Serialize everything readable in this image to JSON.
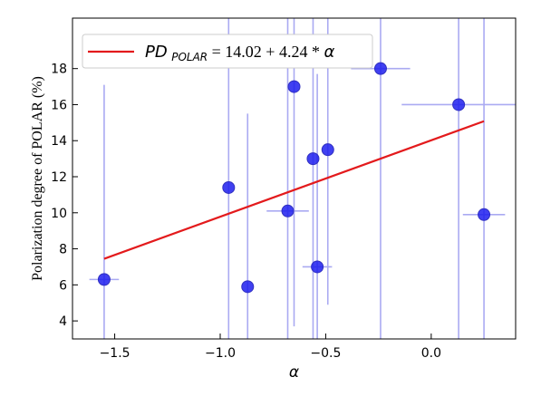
{
  "chart_data": {
    "type": "scatter",
    "xlabel": "α",
    "ylabel": "Polarization degree of POLAR (%)",
    "xlim": [
      -1.7,
      0.4
    ],
    "ylim": [
      3.0,
      20.8
    ],
    "x_ticks": [
      -1.5,
      -1.0,
      -0.5,
      0.0
    ],
    "x_tick_labels": [
      "−1.5",
      "−1.0",
      "−0.5",
      "0.0"
    ],
    "y_ticks": [
      4,
      6,
      8,
      10,
      12,
      14,
      16,
      18
    ],
    "y_tick_labels": [
      "4",
      "6",
      "8",
      "10",
      "12",
      "14",
      "16",
      "18"
    ],
    "points": [
      {
        "x": -1.55,
        "y": 6.3,
        "x_err": 0.07,
        "y_low": 3.0,
        "y_high": 17.1
      },
      {
        "x": -0.96,
        "y": 11.4,
        "x_err": 0.0,
        "y_low": 3.0,
        "y_high": 20.8
      },
      {
        "x": -0.87,
        "y": 5.9,
        "x_err": 0.0,
        "y_low": 3.0,
        "y_high": 15.5
      },
      {
        "x": -0.68,
        "y": 10.1,
        "x_err": 0.1,
        "y_low": 3.0,
        "y_high": 20.8
      },
      {
        "x": -0.65,
        "y": 17.0,
        "x_err": 0.0,
        "y_low": 3.7,
        "y_high": 20.8
      },
      {
        "x": -0.56,
        "y": 13.0,
        "x_err": 0.0,
        "y_low": 3.0,
        "y_high": 20.8
      },
      {
        "x": -0.54,
        "y": 7.0,
        "x_err": 0.07,
        "y_low": 3.0,
        "y_high": 17.7
      },
      {
        "x": -0.49,
        "y": 13.5,
        "x_err": 0.0,
        "y_low": 4.9,
        "y_high": 20.8
      },
      {
        "x": -0.24,
        "y": 18.0,
        "x_err": 0.14,
        "y_low": 3.0,
        "y_high": 20.8
      },
      {
        "x": 0.13,
        "y": 16.0,
        "x_err": 0.27,
        "y_low": 3.0,
        "y_high": 20.8
      },
      {
        "x": 0.25,
        "y": 9.9,
        "x_err": 0.1,
        "y_low": 3.0,
        "y_high": 20.8
      }
    ],
    "fit": {
      "intercept": 14.02,
      "slope": 4.24,
      "x_range": [
        -1.55,
        0.25
      ]
    },
    "legend": {
      "position": "top-left",
      "symbol_main": "PD",
      "symbol_sub": "POLAR",
      "equation": "= 14.02 + 4.24 * ",
      "variable": "α"
    },
    "colors": {
      "points": "#1f1fee",
      "point_edge": "#3030c0",
      "error_bars": "#aaaaf2",
      "fit_line": "#e31a1c"
    }
  }
}
